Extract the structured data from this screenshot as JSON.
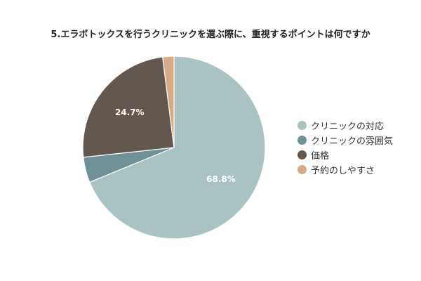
{
  "chart_data": {
    "type": "pie",
    "title": "5.エラボトックスを行うクリニックを選ぶ際に、重視するポイントは何ですか",
    "categories": [
      "クリニックの対応",
      "クリニックの雰囲気",
      "価格",
      "予約のしやすさ"
    ],
    "values": [
      68.8,
      4.5,
      24.7,
      2.0
    ],
    "data_labels": [
      "68.8%",
      "",
      "24.7%",
      ""
    ],
    "colors": [
      "#abc2c2",
      "#6f9095",
      "#635850",
      "#d6ab87"
    ],
    "legend_position": "right",
    "start_angle": "top",
    "direction": "clockwise"
  }
}
